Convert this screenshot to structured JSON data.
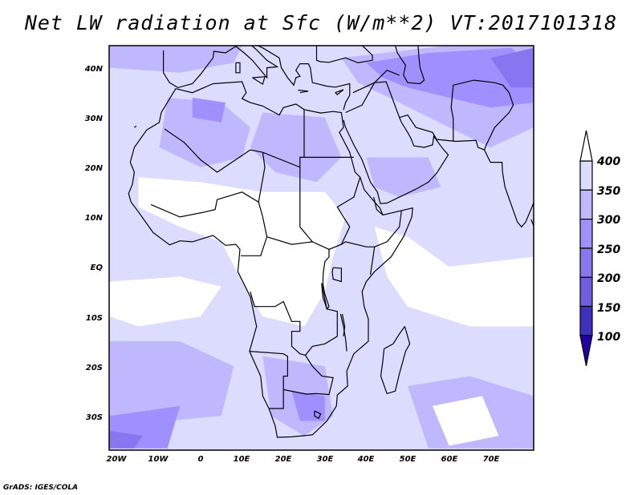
{
  "title": "Net LW radiation at Sfc (W/m**2) VT:2017101318",
  "credit": "GrADS: IGES/COLA",
  "map": {
    "lon_labels": [
      "20W",
      "10W",
      "0",
      "10E",
      "20E",
      "30E",
      "40E",
      "50E",
      "60E",
      "70E"
    ],
    "lat_labels": [
      "40N",
      "30N",
      "20N",
      "10N",
      "EQ",
      "10S",
      "20S",
      "30S"
    ]
  },
  "colorbar": {
    "levels": [
      "100",
      "150",
      "200",
      "250",
      "300",
      "350",
      "400"
    ],
    "colors": [
      "#2200a0",
      "#4030c0",
      "#6f5ee0",
      "#8676ef",
      "#a090ff",
      "#c0b8ff",
      "#dcdcff",
      "#ffffff"
    ]
  }
}
